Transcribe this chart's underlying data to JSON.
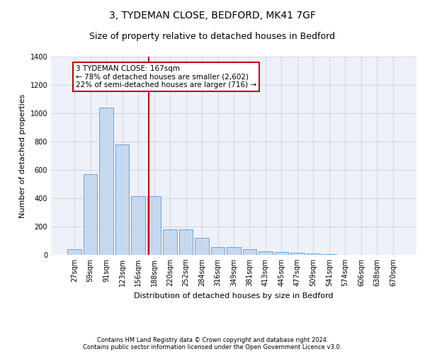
{
  "title_line1": "3, TYDEMAN CLOSE, BEDFORD, MK41 7GF",
  "title_line2": "Size of property relative to detached houses in Bedford",
  "xlabel": "Distribution of detached houses by size in Bedford",
  "ylabel": "Number of detached properties",
  "footnote": "Contains HM Land Registry data © Crown copyright and database right 2024.\nContains public sector information licensed under the Open Government Licence v3.0.",
  "categories": [
    "27sqm",
    "59sqm",
    "91sqm",
    "123sqm",
    "156sqm",
    "188sqm",
    "220sqm",
    "252sqm",
    "284sqm",
    "316sqm",
    "349sqm",
    "381sqm",
    "413sqm",
    "445sqm",
    "477sqm",
    "509sqm",
    "541sqm",
    "574sqm",
    "606sqm",
    "638sqm",
    "670sqm"
  ],
  "values": [
    40,
    570,
    1040,
    780,
    415,
    415,
    180,
    180,
    120,
    55,
    55,
    40,
    25,
    20,
    15,
    10,
    5,
    0,
    0,
    0,
    0
  ],
  "bar_color": "#c5d8f0",
  "bar_edge_color": "#5b9bd5",
  "grid_color": "#d0d8e8",
  "background_color": "#eef2f8",
  "vline_x": 4.65,
  "vline_color": "#cc0000",
  "annotation_text": "3 TYDEMAN CLOSE: 167sqm\n← 78% of detached houses are smaller (2,602)\n22% of semi-detached houses are larger (716) →",
  "annotation_box_color": "#ffffff",
  "annotation_edge_color": "#cc0000",
  "ylim": [
    0,
    1400
  ],
  "yticks": [
    0,
    200,
    400,
    600,
    800,
    1000,
    1200,
    1400
  ],
  "title1_fontsize": 10,
  "title2_fontsize": 9,
  "ylabel_fontsize": 8,
  "xlabel_fontsize": 8,
  "footnote_fontsize": 6,
  "tick_fontsize": 7,
  "annot_fontsize": 7.5
}
